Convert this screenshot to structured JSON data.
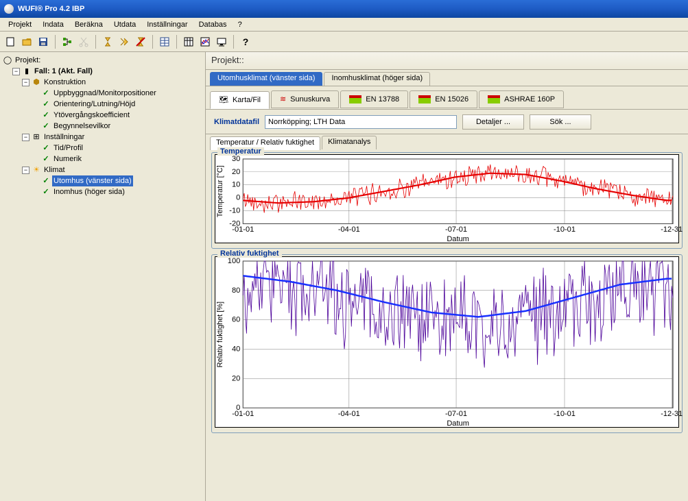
{
  "title": "WUFI® Pro 4.2 IBP",
  "menu": [
    "Projekt",
    "Indata",
    "Beräkna",
    "Utdata",
    "Inställningar",
    "Databas",
    "?"
  ],
  "tree": {
    "root": "Projekt:",
    "case": "Fall: 1  (Akt. Fall)",
    "konstruktion": "Konstruktion",
    "kon_items": [
      "Uppbyggnad/Monitorpositioner",
      "Orientering/Lutning/Höjd",
      "Ytövergångskoefficient",
      "Begynnelsevilkor"
    ],
    "instal": "Inställningar",
    "instal_items": [
      "Tid/Profil",
      "Numerik"
    ],
    "klimat": "Klimat",
    "klimat_items": [
      "Utomhus (vänster sida)",
      "Inomhus (höger sida)"
    ]
  },
  "main_header": "Projekt::",
  "tabs1": [
    "Utomhusklimat (vänster sida)",
    "Inomhusklimat (höger sida)"
  ],
  "tabs2": [
    "Karta/Fil",
    "Sunuskurva",
    "EN 13788",
    "EN 15026",
    "ASHRAE 160P"
  ],
  "klimatdatafil_label": "Klimatdatafil",
  "klimatdatafil_value": "Norrköpping; LTH Data",
  "detaljer_btn": "Detaljer ...",
  "sok_btn": "Sök ...",
  "tabs3": [
    "Temperatur / Relativ fuktighet",
    "Klimatanalys"
  ],
  "chart_temp": {
    "title": "Temperatur",
    "ylabel": "Temperatur [°C]",
    "xlabel": "Datum",
    "ylim": [
      -20,
      30
    ],
    "ytick_step": 10,
    "xticks": [
      "-01-01",
      "-04-01",
      "-07-01",
      "-10-01",
      "-12-31"
    ],
    "line_color": "#e60000",
    "smooth_color": "#e60000",
    "grid_color": "#808080",
    "bg": "#ffffff",
    "line_width_raw": 0.8,
    "line_width_smooth": 2.2,
    "smooth": [
      [
        0,
        -2
      ],
      [
        30,
        -4
      ],
      [
        60,
        -3
      ],
      [
        90,
        0
      ],
      [
        120,
        5
      ],
      [
        150,
        10
      ],
      [
        180,
        16
      ],
      [
        210,
        19
      ],
      [
        240,
        18
      ],
      [
        270,
        13
      ],
      [
        300,
        7
      ],
      [
        330,
        2
      ],
      [
        360,
        -2
      ]
    ]
  },
  "chart_rh": {
    "title": "Relativ fuktighet",
    "ylabel": "Relativ fuktighet [%]",
    "xlabel": "Datum",
    "ylim": [
      0,
      100
    ],
    "ytick_step": 20,
    "xticks": [
      "-01-01",
      "-04-01",
      "-07-01",
      "-10-01",
      "-12-31"
    ],
    "line_color": "#4b0099",
    "smooth_color": "#1830ff",
    "grid_color": "#808080",
    "bg": "#ffffff",
    "line_width_raw": 0.8,
    "line_width_smooth": 2.5,
    "smooth": [
      [
        0,
        90
      ],
      [
        40,
        86
      ],
      [
        80,
        80
      ],
      [
        120,
        72
      ],
      [
        160,
        65
      ],
      [
        200,
        62
      ],
      [
        240,
        66
      ],
      [
        280,
        75
      ],
      [
        320,
        84
      ],
      [
        360,
        88
      ]
    ]
  }
}
